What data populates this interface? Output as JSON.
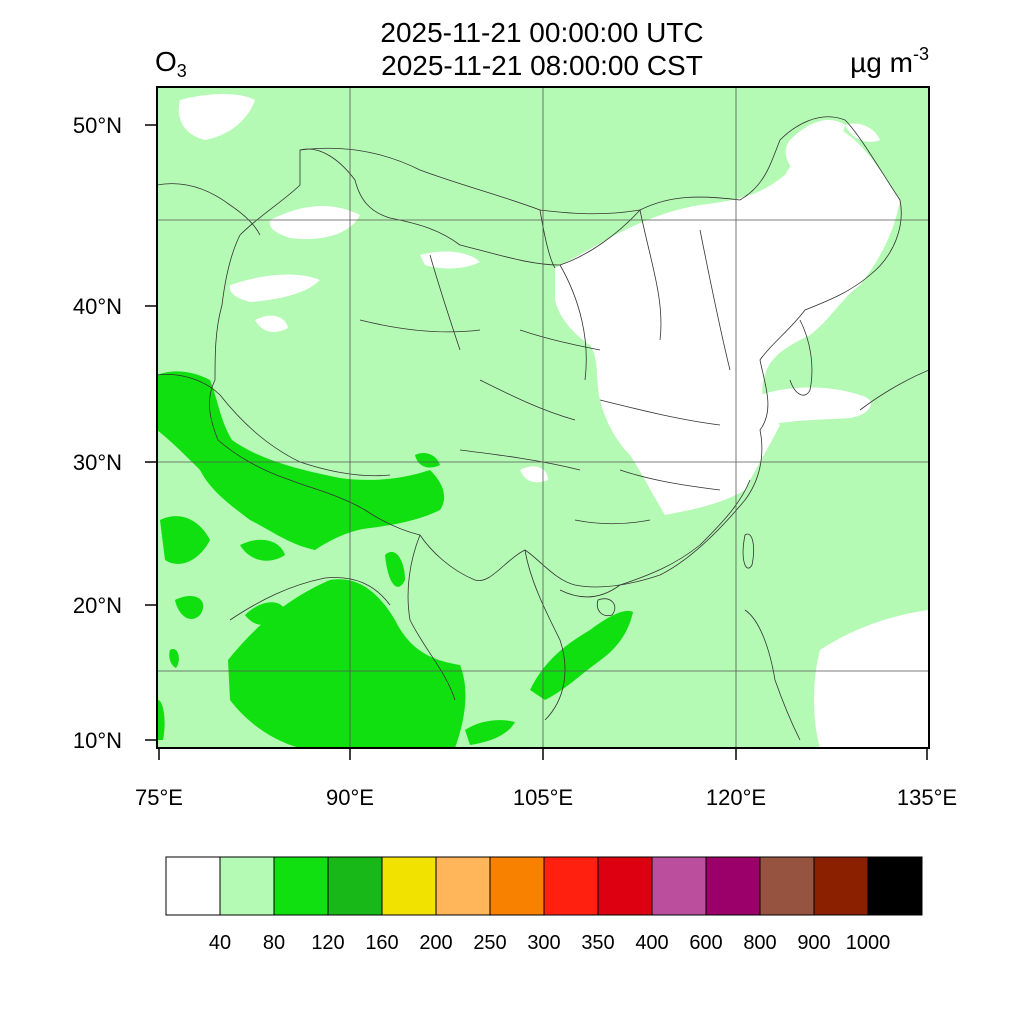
{
  "header": {
    "utc_time": "2025-11-21 00:00:00 UTC",
    "local_time": "2025-11-21 08:00:00 CST",
    "variable_main": "O",
    "variable_sub": "3",
    "unit_main": "µg m",
    "unit_sup": "-3"
  },
  "map": {
    "lon_ticks": [
      {
        "value": 75,
        "label": "75°E"
      },
      {
        "value": 90,
        "label": "90°E"
      },
      {
        "value": 105,
        "label": "105°E"
      },
      {
        "value": 120,
        "label": "120°E"
      },
      {
        "value": 135,
        "label": "135°E"
      }
    ],
    "lat_ticks": [
      {
        "value": 10,
        "label": "10°N"
      },
      {
        "value": 20,
        "label": "20°N"
      },
      {
        "value": 30,
        "label": "30°N"
      },
      {
        "value": 40,
        "label": "40°N"
      },
      {
        "value": 50,
        "label": "50°N"
      }
    ],
    "extent": {
      "lon_min": 75,
      "lon_max": 135,
      "lat_min": 9,
      "lat_max": 52
    },
    "projection": "lambert-conformal",
    "grid": true
  },
  "colorbar": {
    "colors": [
      "#ffffff",
      "#b4fab4",
      "#10e010",
      "#18b818",
      "#f2e200",
      "#ffb55a",
      "#f88200",
      "#ff2010",
      "#dc0010",
      "#bb4f9e",
      "#9b006a",
      "#96533f",
      "#8b2000",
      "#000000"
    ],
    "labels": [
      "40",
      "80",
      "120",
      "160",
      "200",
      "250",
      "300",
      "350",
      "400",
      "600",
      "800",
      "900",
      "1000"
    ]
  },
  "field": {
    "base_level_color": "#b4fab4",
    "low_level_color": "#ffffff",
    "elevated_level_color": "#10e010"
  }
}
